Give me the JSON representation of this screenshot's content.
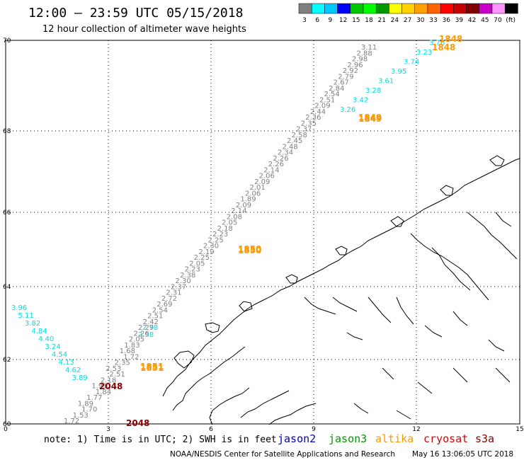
{
  "header": {
    "title": "12:00 – 23:59 UTC 05/15/2018",
    "subtitle": "12 hour collection of altimeter wave heights"
  },
  "colorbar": {
    "colors": [
      "#808080",
      "#00ffff",
      "#00c8ff",
      "#0000ff",
      "#00c800",
      "#00ff00",
      "#009600",
      "#ffff00",
      "#ffd200",
      "#ffa000",
      "#ff6400",
      "#ff0000",
      "#c80000",
      "#800000",
      "#c800c8",
      "#ff96ff",
      "#000000"
    ],
    "labels": [
      "3",
      "6",
      "9",
      "12",
      "15",
      "18",
      "21",
      "24",
      "27",
      "30",
      "33",
      "36",
      "39",
      "42",
      "45",
      "70",
      "(ft)"
    ]
  },
  "axes": {
    "y_labels": [
      "70",
      "68",
      "66",
      "64",
      "62",
      "60"
    ],
    "x_labels": [
      "0",
      "3",
      "6",
      "9",
      "12",
      "15"
    ]
  },
  "tracks": [
    {
      "color": "#808080",
      "labels": [
        "1.72",
        "1.53",
        "1.70",
        "1.89",
        "1.77",
        "1.84",
        "1.91",
        "2.18",
        "2.51",
        "2.53",
        "2.35",
        "1.72",
        "1.68",
        "1.83",
        "2.05",
        "2.26",
        "2.29",
        "2.42",
        "2.51",
        "2.54",
        "2.69",
        "2.72",
        "2.31",
        "2.37",
        "2.30",
        "2.38",
        "2.23",
        "2.05",
        "2.25",
        "2.19",
        "2.30",
        "2.25",
        "2.23",
        "2.18",
        "2.05",
        "2.08",
        "2.14",
        "2.09",
        "1.89",
        "2.06",
        "2.01",
        "2.09",
        "2.06",
        "2.14",
        "2.26",
        "2.26",
        "2.34",
        "2.48",
        "2.45",
        "2.58",
        "2.37",
        "2.35",
        "2.36",
        "2.44",
        "2.09",
        "2.51",
        "2.54",
        "2.84",
        "2.67",
        "2.79",
        "2.92",
        "2.96",
        "2.98",
        "2.88",
        "3.11"
      ]
    },
    {
      "color": "#00e0e0",
      "labels": [
        "3.96",
        "5.11",
        "3.82",
        "4.84",
        "4.40",
        "3.24",
        "4.54",
        "4.13",
        "4.62",
        "3.89",
        "2.38",
        "2.78",
        "3.26",
        "3.42",
        "3.28",
        "3.61",
        "3.95",
        "3.74",
        "3.23",
        "3.76"
      ]
    }
  ],
  "time_labels": [
    {
      "text": "2048",
      "color": "#8b0000"
    },
    {
      "text": "2048",
      "color": "#8b0000"
    },
    {
      "text": "1851",
      "color": "#ff9900"
    },
    {
      "text": "1851",
      "color": "#ff9900"
    },
    {
      "text": "1850",
      "color": "#ff9900"
    },
    {
      "text": "1850",
      "color": "#ff9900"
    },
    {
      "text": "1849",
      "color": "#ff9900"
    },
    {
      "text": "1849",
      "color": "#ff9900"
    },
    {
      "text": "1848",
      "color": "#ff9900"
    },
    {
      "text": "1848",
      "color": "#ff9900"
    }
  ],
  "footer": {
    "note": "note: 1) Time is in UTC; 2) SWH is in feet",
    "legend": [
      {
        "text": "jason2",
        "color": "#0000cc"
      },
      {
        "text": "jason3",
        "color": "#009900"
      },
      {
        "text": "altika",
        "color": "#ff9900"
      },
      {
        "text": "cryosat",
        "color": "#dd0000"
      },
      {
        "text": "s3a",
        "color": "#8b0000"
      }
    ],
    "credit": "NOAA/NESDIS Center for Satellite Applications and Research",
    "timestamp": "May 16 13:06:05 UTC 2018"
  }
}
